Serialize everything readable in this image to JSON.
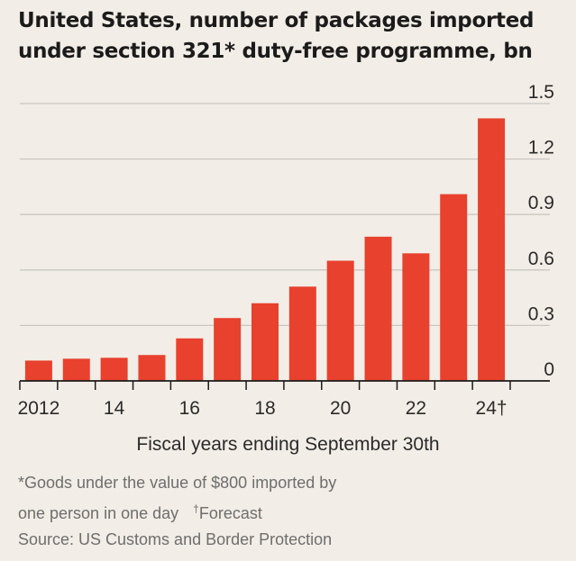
{
  "title_line1": "United States, number of packages imported",
  "title_line2": "under section 321* duty-free programme, bn",
  "footnote_line1": "*Goods under the value of $800 imported by",
  "footnote_line2": "one person in one day",
  "dagger": "†",
  "forecast": "Forecast",
  "source": "Source: US Customs and Border Protection",
  "colors": {
    "bar": "#e8412e",
    "grid": "#c9c6c1",
    "axis": "#1b1b1b",
    "background": "#f2ede6"
  },
  "chart_data": {
    "type": "bar",
    "categories": [
      "2012",
      "2013",
      "2014",
      "2015",
      "2016",
      "2017",
      "2018",
      "2019",
      "2020",
      "2021",
      "2022",
      "2023",
      "2024"
    ],
    "values": [
      0.11,
      0.12,
      0.125,
      0.14,
      0.23,
      0.34,
      0.42,
      0.51,
      0.65,
      0.78,
      0.69,
      1.01,
      1.42
    ],
    "forecast_categories": [
      "2024"
    ],
    "xlabel": "Fiscal years ending September 30th",
    "ylabel": "",
    "ylim": [
      0,
      1.5
    ],
    "y_ticks": [
      "0",
      "0.3",
      "0.6",
      "0.9",
      "1.2",
      "1.5"
    ],
    "x_tick_labels": [
      "2012",
      "14",
      "16",
      "18",
      "20",
      "22",
      "24†"
    ],
    "grid": true,
    "y_axis_side": "right"
  }
}
